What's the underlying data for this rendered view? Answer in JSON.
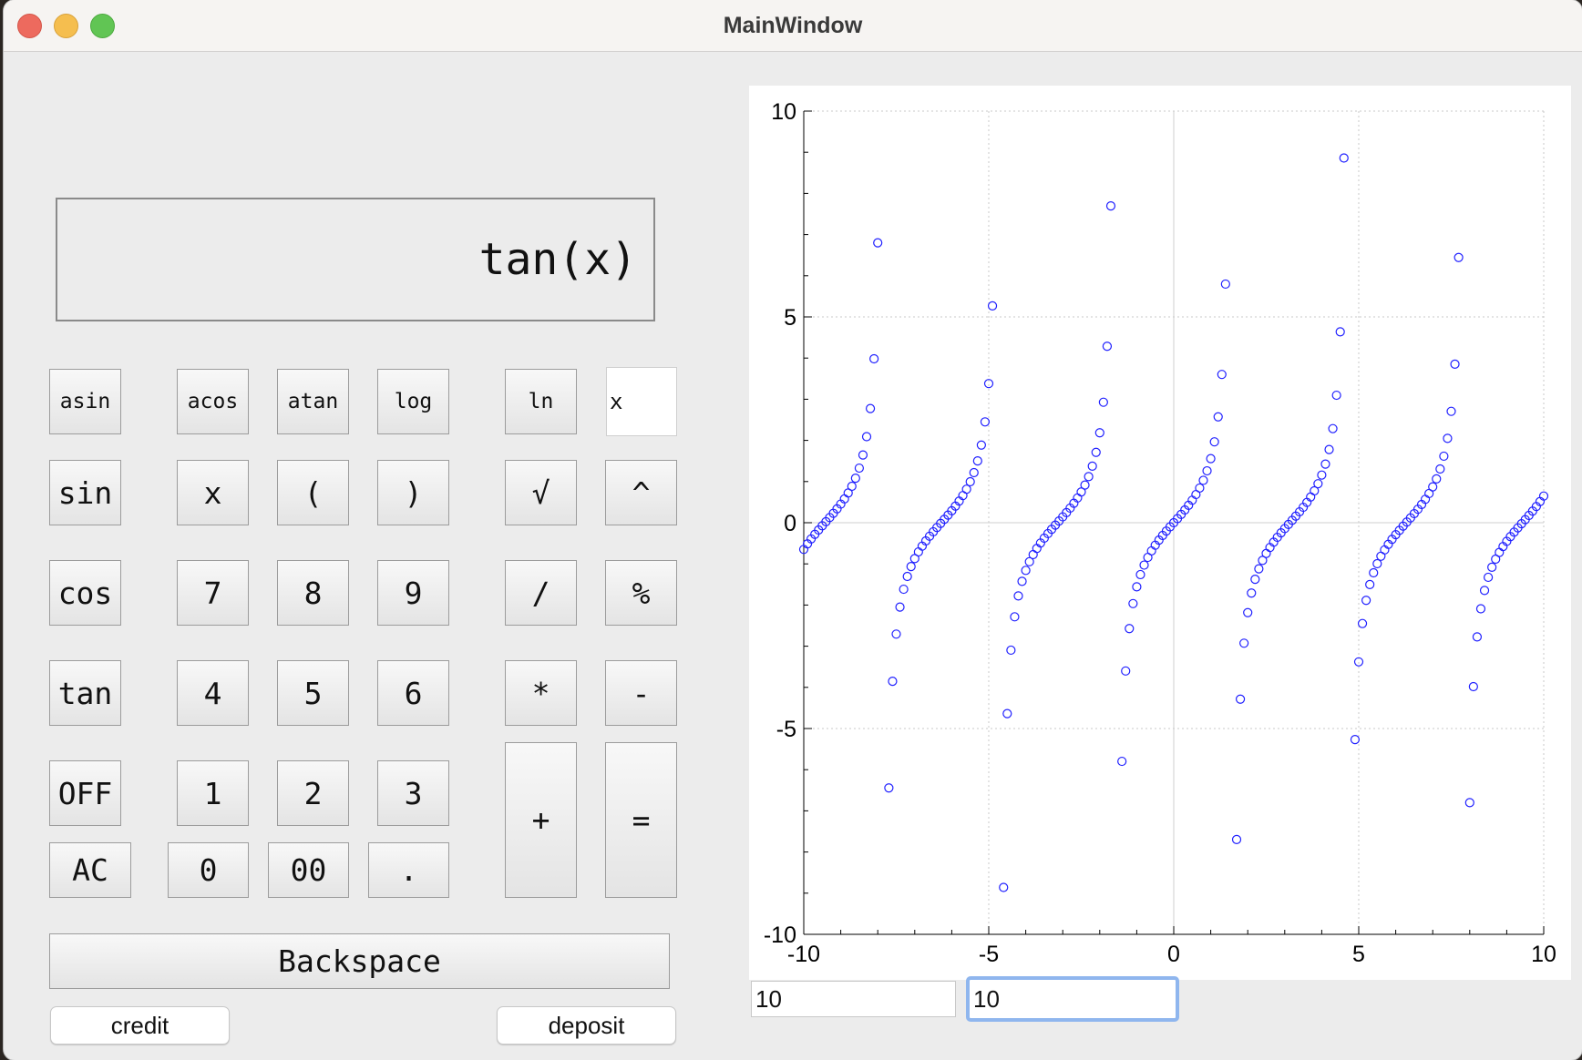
{
  "window": {
    "title": "MainWindow"
  },
  "display": {
    "expression": "tan(x)"
  },
  "keypad": {
    "asin": "asin",
    "acos": "acos",
    "atan": "atan",
    "log": "log",
    "ln": "ln",
    "x_value": "x",
    "sin": "sin",
    "x": "x",
    "lparen": "(",
    "rparen": ")",
    "sqrt": "√",
    "pow": "^",
    "cos": "cos",
    "d7": "7",
    "d8": "8",
    "d9": "9",
    "div": "/",
    "mod": "%",
    "tan": "tan",
    "d4": "4",
    "d5": "5",
    "d6": "6",
    "mul": "*",
    "sub": "-",
    "off": "OFF",
    "d1": "1",
    "d2": "2",
    "d3": "3",
    "add": "+",
    "eq": "=",
    "ac": "AC",
    "d0": "0",
    "d00": "00",
    "dot": ".",
    "backspace": "Backspace"
  },
  "bottom_buttons": {
    "credit": "credit",
    "deposit": "deposit"
  },
  "range_inputs": {
    "x_range": "10",
    "y_range": "10"
  },
  "chart_data": {
    "type": "scatter",
    "function": "tan(x)",
    "title": "",
    "xlabel": "",
    "ylabel": "",
    "xlim": [
      -10,
      10
    ],
    "ylim": [
      -10,
      10
    ],
    "x_ticks": [
      "-10",
      "-5",
      "0",
      "5",
      "10"
    ],
    "y_ticks": [
      "-10",
      "-5",
      "0",
      "5",
      "10"
    ],
    "x_step": 0.1,
    "grid": true,
    "marker": "hollow-circle",
    "marker_color": "#2020ff"
  }
}
